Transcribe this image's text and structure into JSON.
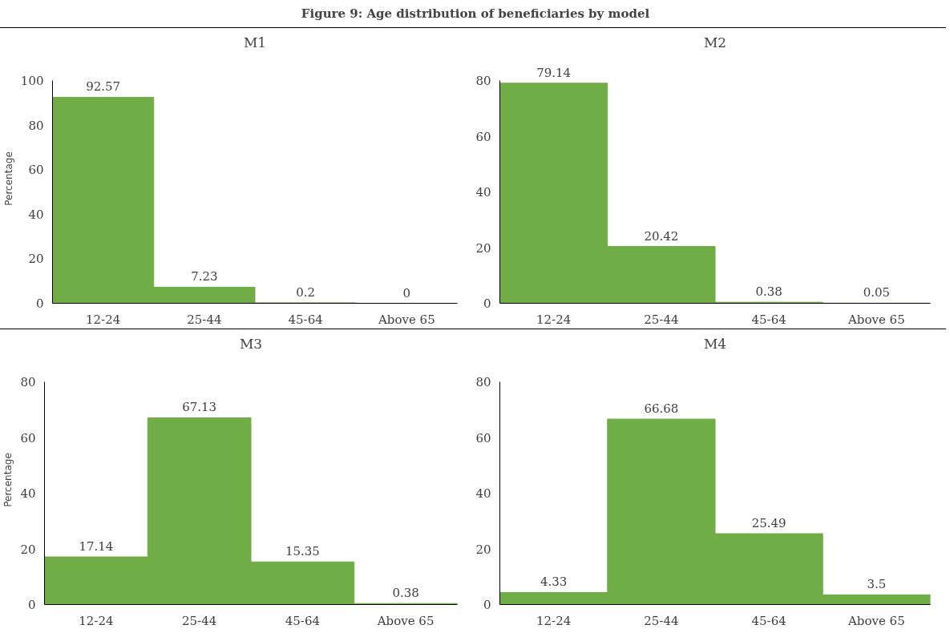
{
  "chart_data": [
    {
      "type": "other",
      "title": "Figure 9: Age distribution of beneficiaries by model"
    },
    {
      "type": "bar",
      "title": "M1",
      "ylabel": "Percentage",
      "categories": [
        "12-24",
        "25-44",
        "45-64",
        "Above 65"
      ],
      "values": [
        92.57,
        7.23,
        0.2,
        0
      ],
      "color": "#70ad47",
      "ylim": [
        0,
        100
      ],
      "yticks": [
        0,
        20,
        40,
        60,
        80,
        100
      ],
      "data_labels": true
    },
    {
      "type": "bar",
      "title": "M2",
      "categories": [
        "12-24",
        "25-44",
        "45-64",
        "Above 65"
      ],
      "values": [
        79.14,
        20.42,
        0.38,
        0.05
      ],
      "color": "#70ad47",
      "ylim": [
        0,
        80
      ],
      "yticks": [
        0,
        20,
        40,
        60,
        80
      ],
      "data_labels": true
    },
    {
      "type": "bar",
      "title": "M3",
      "ylabel": "Percentage",
      "categories": [
        "12-24",
        "25-44",
        "45-64",
        "Above 65"
      ],
      "values": [
        17.14,
        67.13,
        15.35,
        0.38
      ],
      "color": "#70ad47",
      "ylim": [
        0,
        80
      ],
      "yticks": [
        0,
        20,
        40,
        60,
        80
      ],
      "data_labels": true
    },
    {
      "type": "bar",
      "title": "M4",
      "categories": [
        "12-24",
        "25-44",
        "45-64",
        "Above 65"
      ],
      "values": [
        4.33,
        66.68,
        25.49,
        3.5
      ],
      "color": "#70ad47",
      "ylim": [
        0,
        80
      ],
      "yticks": [
        0,
        20,
        40,
        60,
        80
      ],
      "data_labels": true
    }
  ]
}
